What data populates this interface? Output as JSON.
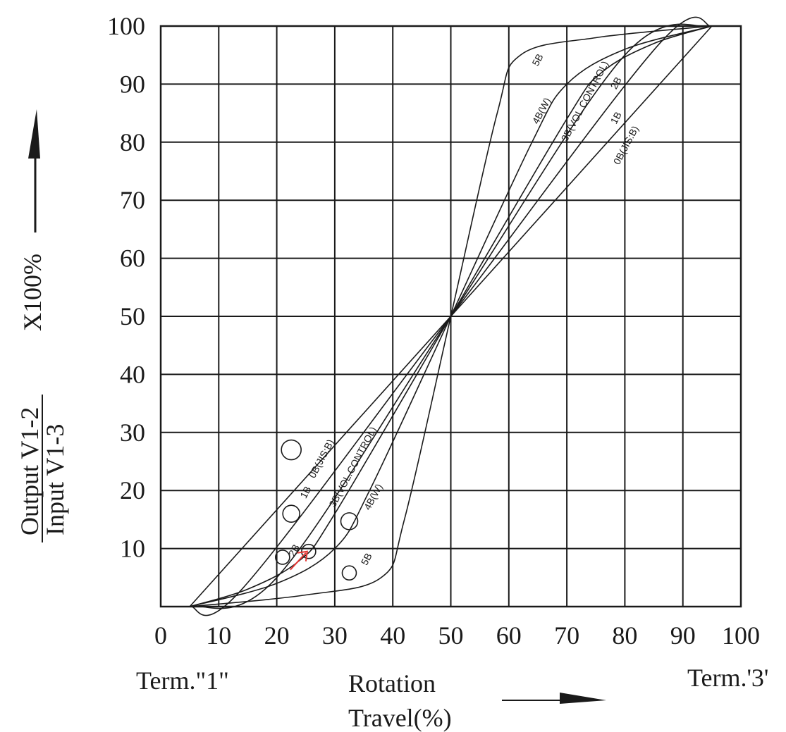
{
  "chart_data": {
    "type": "line",
    "xlim": [
      0,
      100
    ],
    "ylim": [
      0,
      100
    ],
    "grid": true,
    "x_ticks": [
      "0",
      "10",
      "20",
      "30",
      "40",
      "50",
      "60",
      "70",
      "80",
      "90",
      "100"
    ],
    "y_ticks": [
      "10",
      "20",
      "30",
      "40",
      "50",
      "60",
      "70",
      "80",
      "90",
      "100"
    ],
    "xlabel_left": "Term.\"1\"",
    "xlabel_center": [
      "Rotation",
      "Travel(%)"
    ],
    "xlabel_right": "Term.'3'",
    "ylabel_numerator": "Output V1-2",
    "ylabel_denominator": "Input V1-3",
    "ylabel_multiplier": "X100%",
    "series": [
      {
        "name": "0B(JIS:B)",
        "x": [
          5,
          50,
          95
        ],
        "y": [
          0,
          50,
          100
        ]
      },
      {
        "name": "1B",
        "x": [
          5,
          14,
          50,
          86,
          95
        ],
        "y": [
          0,
          3,
          50,
          97,
          100
        ]
      },
      {
        "name": "2B",
        "x": [
          5,
          20,
          50,
          80,
          95
        ],
        "y": [
          0,
          5,
          50,
          95,
          100
        ]
      },
      {
        "name": "3B(VOL.CONTROL)",
        "x": [
          5,
          15,
          24,
          30,
          50,
          70,
          76,
          85,
          95
        ],
        "y": [
          0,
          3,
          8,
          16,
          50,
          84,
          92,
          97,
          100
        ]
      },
      {
        "name": "4B(W)",
        "x": [
          5,
          20,
          30,
          36,
          50,
          64,
          70,
          80,
          95
        ],
        "y": [
          0,
          4,
          10,
          20,
          50,
          80,
          90,
          96,
          100
        ]
      },
      {
        "name": "5B",
        "x": [
          5,
          25,
          38,
          42,
          50,
          58,
          62,
          75,
          95
        ],
        "y": [
          0,
          2,
          5,
          15,
          50,
          85,
          95,
          98,
          100
        ]
      }
    ],
    "markers": [
      {
        "label": "0B(JIS:B)",
        "x": 22.5,
        "y": 27
      },
      {
        "label": "1B",
        "x": 22.5,
        "y": 16
      },
      {
        "label": "2B",
        "x": 21,
        "y": 8.5
      },
      {
        "label": "3B(VOL.CONTROL)",
        "x": 25.5,
        "y": 9.5
      },
      {
        "label": "4B(W)",
        "x": 32.5,
        "y": 14.7
      },
      {
        "label": "5B",
        "x": 32.5,
        "y": 5.8
      }
    ],
    "upper_labels": [
      {
        "text": "5B",
        "x": 65,
        "y": 93
      },
      {
        "text": "4B(W)",
        "x": 65,
        "y": 83
      },
      {
        "text": "3B(VOL.CONTROL)",
        "x": 70,
        "y": 80
      },
      {
        "text": "2B",
        "x": 78.5,
        "y": 89
      },
      {
        "text": "1B",
        "x": 78.5,
        "y": 83
      },
      {
        "text": "0B(JIS:B)",
        "x": 79,
        "y": 76
      }
    ],
    "lower_labels": [
      {
        "text": "0B(JIS:B)",
        "x": 26.5,
        "y": 22
      },
      {
        "text": "1B",
        "x": 25,
        "y": 18.5
      },
      {
        "text": "2B",
        "x": 23,
        "y": 8.5
      },
      {
        "text": "3B(VOL.CONTROL)",
        "x": 30,
        "y": 17
      },
      {
        "text": "4B(W)",
        "x": 36,
        "y": 16.5
      },
      {
        "text": "5B",
        "x": 35.5,
        "y": 7
      }
    ],
    "colors": {
      "ink": "#1a1a1a",
      "pointer_arrow": "#e53935"
    }
  }
}
